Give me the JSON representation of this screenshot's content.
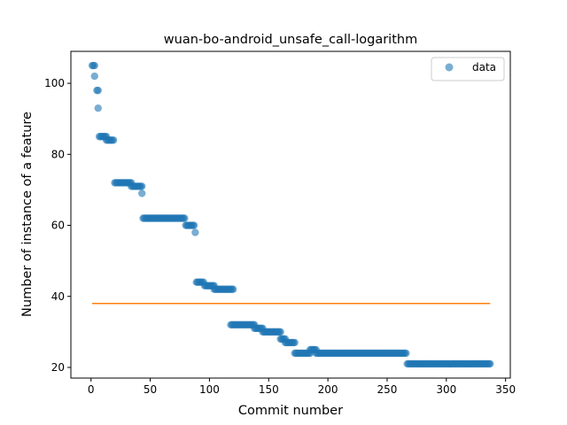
{
  "chart_data": {
    "type": "scatter",
    "title": "wuan-bo-android_unsafe_call-logarithm",
    "xlabel": "Commit number",
    "ylabel": "Number of instance of a feature",
    "xlim": [
      -17,
      354
    ],
    "ylim": [
      17,
      109
    ],
    "xticks": [
      0,
      50,
      100,
      150,
      200,
      250,
      300,
      350
    ],
    "yticks": [
      20,
      40,
      60,
      80,
      100
    ],
    "grid": false,
    "legend": {
      "placement": "top-right",
      "entries": [
        "data"
      ]
    },
    "series": [
      {
        "name": "data",
        "kind": "points",
        "color": "#1f77b4",
        "alpha": 0.6,
        "segments": [
          {
            "x_start": 1,
            "x_end": 3,
            "y": 105
          },
          {
            "x_start": 3,
            "x_end": 3,
            "y": 102
          },
          {
            "x_start": 5,
            "x_end": 6,
            "y": 98
          },
          {
            "x_start": 6,
            "x_end": 6,
            "y": 93
          },
          {
            "x_start": 7,
            "x_end": 13,
            "y": 85
          },
          {
            "x_start": 13,
            "x_end": 19,
            "y": 84
          },
          {
            "x_start": 20,
            "x_end": 34,
            "y": 72
          },
          {
            "x_start": 34,
            "x_end": 43,
            "y": 71
          },
          {
            "x_start": 43,
            "x_end": 43,
            "y": 69
          },
          {
            "x_start": 44,
            "x_end": 79,
            "y": 62
          },
          {
            "x_start": 80,
            "x_end": 87,
            "y": 60
          },
          {
            "x_start": 88,
            "x_end": 88,
            "y": 58
          },
          {
            "x_start": 89,
            "x_end": 95,
            "y": 44
          },
          {
            "x_start": 96,
            "x_end": 104,
            "y": 43
          },
          {
            "x_start": 104,
            "x_end": 120,
            "y": 42
          },
          {
            "x_start": 118,
            "x_end": 138,
            "y": 32
          },
          {
            "x_start": 138,
            "x_end": 145,
            "y": 31
          },
          {
            "x_start": 145,
            "x_end": 160,
            "y": 30
          },
          {
            "x_start": 160,
            "x_end": 164,
            "y": 28
          },
          {
            "x_start": 164,
            "x_end": 172,
            "y": 27
          },
          {
            "x_start": 172,
            "x_end": 185,
            "y": 24
          },
          {
            "x_start": 185,
            "x_end": 190,
            "y": 25
          },
          {
            "x_start": 190,
            "x_end": 266,
            "y": 24
          },
          {
            "x_start": 267,
            "x_end": 337,
            "y": 21
          }
        ]
      },
      {
        "name": "",
        "kind": "line",
        "color": "#ff7f0e",
        "x": [
          1,
          337
        ],
        "y": [
          38,
          38
        ]
      }
    ]
  }
}
